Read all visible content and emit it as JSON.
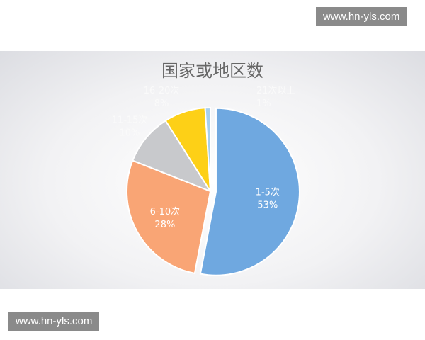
{
  "watermark_top": "www.hn-yls.com",
  "watermark_bottom": "www.hn-yls.com",
  "chart_data": {
    "type": "pie",
    "title": "国家或地区数",
    "start": "12 o'clock, clockwise",
    "slices": [
      {
        "label": "1-5次",
        "value": 53,
        "pct": "53%",
        "color": "#6fa8e0",
        "exploded": true
      },
      {
        "label": "6-10次",
        "value": 28,
        "pct": "28%",
        "color": "#f9a575"
      },
      {
        "label": "11-15次",
        "value": 10,
        "pct": "10%",
        "color": "#c8c9cc"
      },
      {
        "label": "16-20次",
        "value": 8,
        "pct": "8%",
        "color": "#fdd017"
      },
      {
        "label": "21次以上",
        "value": 1,
        "pct": "1%",
        "color": "#a6cfee"
      }
    ]
  }
}
